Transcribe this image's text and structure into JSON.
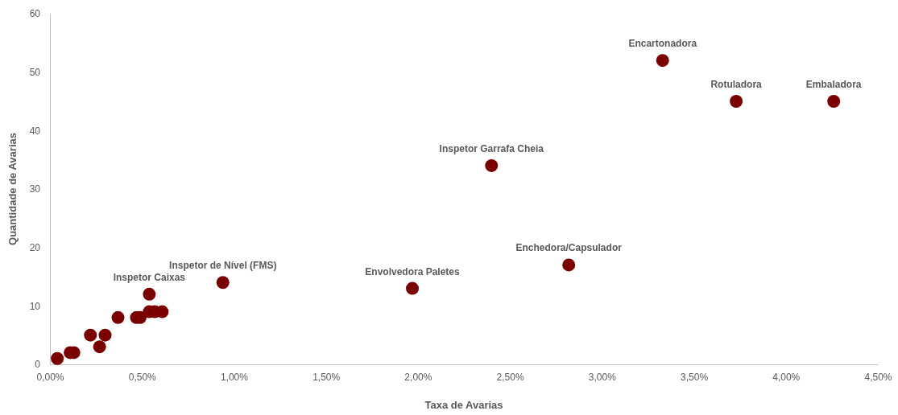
{
  "chart_data": {
    "type": "scatter",
    "xlabel": "Taxa de Avarias",
    "ylabel": "Quantidade de Avarias",
    "x": [
      0.04,
      0.11,
      0.13,
      0.22,
      0.27,
      0.3,
      0.37,
      0.47,
      0.49,
      0.54,
      0.54,
      0.57,
      0.61,
      0.94,
      1.97,
      2.4,
      2.82,
      3.33,
      3.73,
      4.26
    ],
    "series": [
      {
        "color": "#7a0000",
        "values": [
          1,
          2,
          2,
          5,
          3,
          5,
          8,
          8,
          8,
          12,
          9,
          9,
          9,
          14,
          13,
          34,
          17,
          52,
          45,
          45
        ]
      }
    ],
    "marker": "circle",
    "grid": false,
    "xlim": [
      0,
      4.5
    ],
    "xticks": [
      {
        "value": 0,
        "label": "0,00%"
      },
      {
        "value": 0.5,
        "label": "0,50%"
      },
      {
        "value": 1,
        "label": "1,00%"
      },
      {
        "value": 1.5,
        "label": "1,50%"
      },
      {
        "value": 2,
        "label": "2,00%"
      },
      {
        "value": 2.5,
        "label": "2,50%"
      },
      {
        "value": 3,
        "label": "3,00%"
      },
      {
        "value": 3.5,
        "label": "3,50%"
      },
      {
        "value": 4,
        "label": "4,00%"
      },
      {
        "value": 4.5,
        "label": "4,50%"
      }
    ],
    "ylim": [
      0,
      60
    ],
    "yticks": [
      0,
      10,
      20,
      30,
      40,
      50,
      60
    ],
    "annotations": [
      {
        "text": "Inspetor Caixas",
        "x": 0.54,
        "y": 12
      },
      {
        "text": "Inspetor de Nível (FMS)",
        "x": 0.94,
        "y": 14
      },
      {
        "text": "Envolvedora Paletes",
        "x": 1.97,
        "y": 13
      },
      {
        "text": "Inspetor Garrafa Cheia",
        "x": 2.4,
        "y": 34
      },
      {
        "text": "Enchedora/Capsulador",
        "x": 2.82,
        "y": 17
      },
      {
        "text": "Encartonadora",
        "x": 3.33,
        "y": 52
      },
      {
        "text": "Rotuladora",
        "x": 3.73,
        "y": 45
      },
      {
        "text": "Embaladora",
        "x": 4.26,
        "y": 45
      }
    ]
  }
}
